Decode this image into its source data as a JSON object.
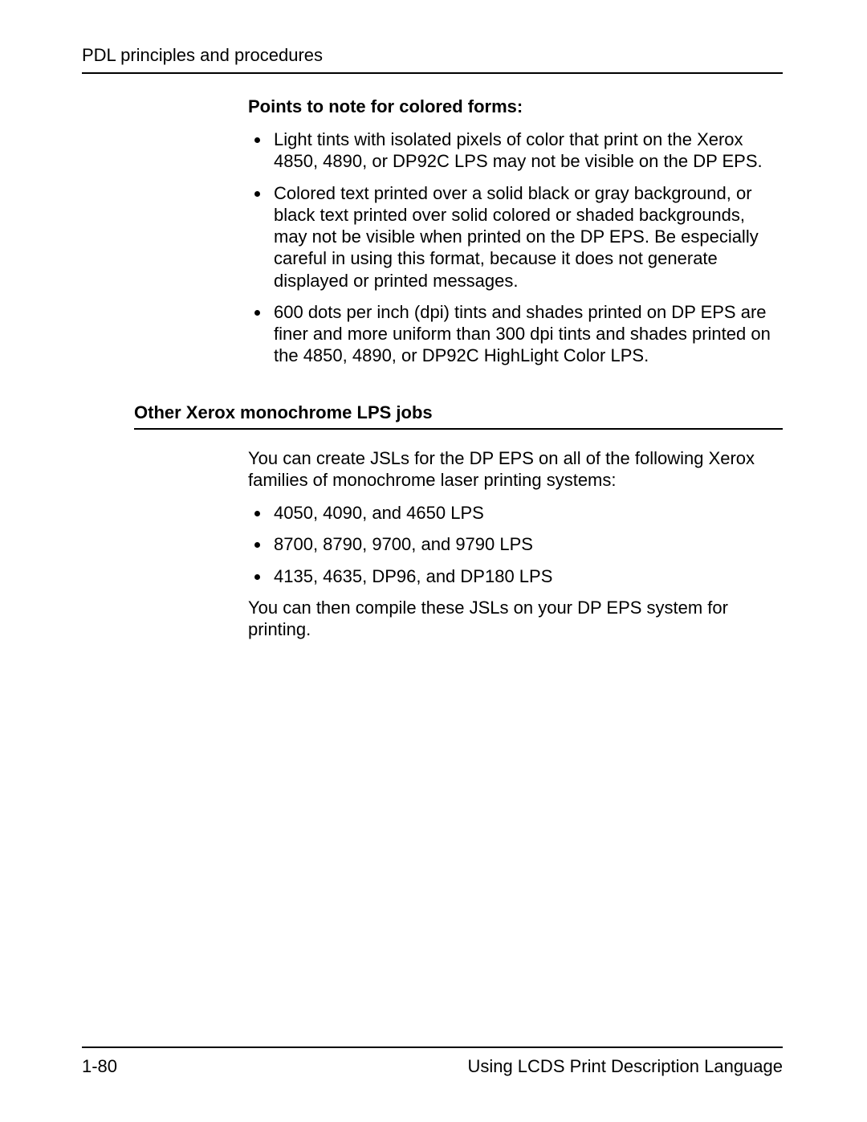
{
  "header": {
    "running_title": "PDL principles and procedures"
  },
  "section1": {
    "heading": "Points to note for colored forms:",
    "bullets": [
      "Light tints with isolated pixels of color that print on the Xerox 4850, 4890, or DP92C LPS may not be visible on the DP EPS.",
      "Colored text printed over a solid black or gray background, or black text printed over solid colored or shaded backgrounds, may not be visible when printed on the DP EPS. Be especially careful in using this format, because it does not generate displayed or printed messages.",
      "600 dots per inch (dpi) tints and shades printed on DP EPS are finer and more uniform than 300 dpi tints and shades printed on the 4850, 4890, or DP92C HighLight Color LPS."
    ]
  },
  "section2": {
    "heading": "Other Xerox monochrome LPS jobs",
    "intro": "You can create JSLs for the DP EPS on all of the following Xerox families of monochrome laser printing systems:",
    "bullets": [
      "4050, 4090, and 4650 LPS",
      "8700, 8790, 9700, and 9790 LPS",
      "4135, 4635, DP96, and DP180 LPS"
    ],
    "outro": "You can then compile these JSLs on your DP EPS system for printing."
  },
  "footer": {
    "page_number": "1-80",
    "doc_title": "Using LCDS Print Description Language"
  }
}
